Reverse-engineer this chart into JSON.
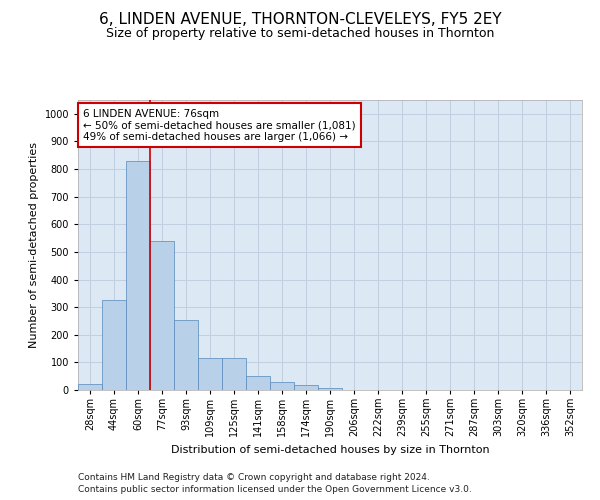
{
  "title": "6, LINDEN AVENUE, THORNTON-CLEVELEYS, FY5 2EY",
  "subtitle": "Size of property relative to semi-detached houses in Thornton",
  "xlabel": "Distribution of semi-detached houses by size in Thornton",
  "ylabel": "Number of semi-detached properties",
  "categories": [
    "28sqm",
    "44sqm",
    "60sqm",
    "77sqm",
    "93sqm",
    "109sqm",
    "125sqm",
    "141sqm",
    "158sqm",
    "174sqm",
    "190sqm",
    "206sqm",
    "222sqm",
    "239sqm",
    "255sqm",
    "271sqm",
    "287sqm",
    "303sqm",
    "320sqm",
    "336sqm",
    "352sqm"
  ],
  "values": [
    20,
    325,
    830,
    540,
    255,
    115,
    115,
    50,
    28,
    18,
    8,
    0,
    0,
    0,
    0,
    0,
    0,
    0,
    0,
    0,
    0
  ],
  "bar_color": "#b8d0e8",
  "bar_edge_color": "#5588bb",
  "red_line_color": "#cc0000",
  "annotation_line1": "6 LINDEN AVENUE: 76sqm",
  "annotation_line2": "← 50% of semi-detached houses are smaller (1,081)",
  "annotation_line3": "49% of semi-detached houses are larger (1,066) →",
  "annotation_box_color": "#ffffff",
  "annotation_box_edge_color": "#cc0000",
  "ylim": [
    0,
    1050
  ],
  "yticks": [
    0,
    100,
    200,
    300,
    400,
    500,
    600,
    700,
    800,
    900,
    1000
  ],
  "grid_color": "#c0d0e0",
  "bg_color": "#dce8f4",
  "footer_line1": "Contains HM Land Registry data © Crown copyright and database right 2024.",
  "footer_line2": "Contains public sector information licensed under the Open Government Licence v3.0.",
  "title_fontsize": 11,
  "subtitle_fontsize": 9,
  "axis_label_fontsize": 8,
  "tick_fontsize": 7,
  "annotation_fontsize": 7.5,
  "footer_fontsize": 6.5,
  "red_line_x": 2.5
}
